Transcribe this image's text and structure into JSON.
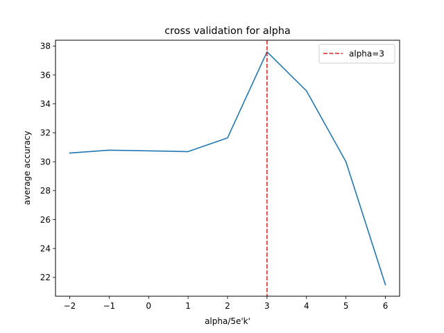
{
  "chart_data": {
    "type": "line",
    "title": "cross validation for alpha",
    "xlabel": "alpha/5e'k'",
    "ylabel": "average accuracy",
    "xlim": [
      -2.36,
      6.36
    ],
    "ylim": [
      20.7,
      38.4
    ],
    "xticks": [
      -2,
      -1,
      0,
      1,
      2,
      3,
      4,
      5,
      6
    ],
    "xtick_labels": [
      "−2",
      "−1",
      "0",
      "1",
      "2",
      "3",
      "4",
      "5",
      "6"
    ],
    "yticks": [
      22,
      24,
      26,
      28,
      30,
      32,
      34,
      36,
      38
    ],
    "grid": false,
    "legend_position": "top-right",
    "series": [
      {
        "x": [
          -2,
          -1,
          0,
          1,
          2,
          3,
          4,
          5,
          6
        ],
        "y": [
          30.6,
          30.8,
          30.75,
          30.7,
          31.65,
          37.6,
          34.9,
          30.0,
          21.5
        ],
        "color": "#1f77b4"
      }
    ],
    "vline": {
      "x": 3,
      "label": "alpha=3",
      "color": "#d62728",
      "style": "dashed"
    }
  }
}
